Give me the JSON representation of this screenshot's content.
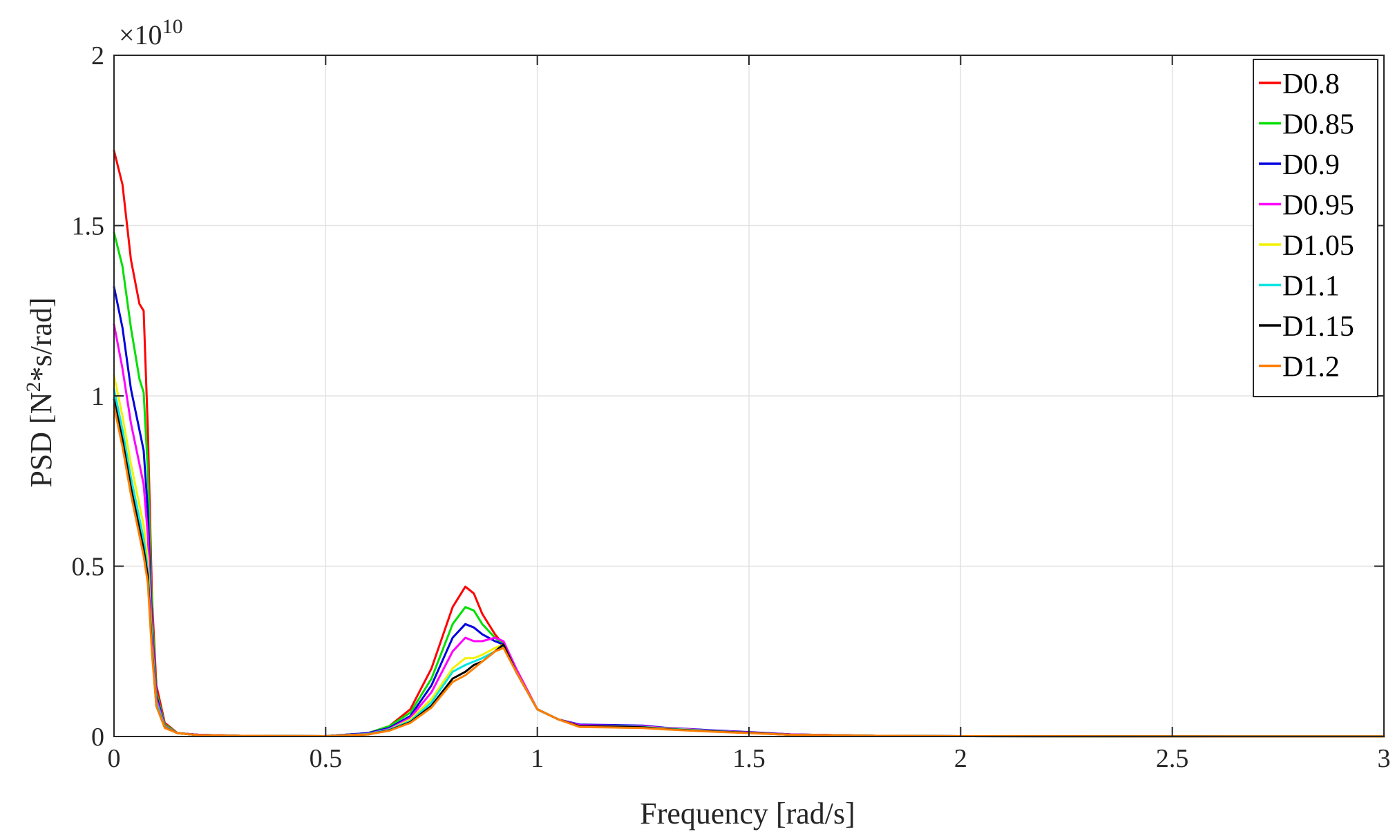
{
  "chart_data": {
    "type": "line",
    "xlabel": "Frequency [rad/s]",
    "ylabel_parts": {
      "prefix": "PSD [N",
      "superscript": "2",
      "suffix": "*s/rad]"
    },
    "y_exponent": {
      "base": "×10",
      "power": "10"
    },
    "xlim": [
      0,
      3
    ],
    "ylim": [
      0,
      2
    ],
    "x_ticks": [
      0,
      0.5,
      1,
      1.5,
      2,
      2.5,
      3
    ],
    "x_tick_labels": [
      "0",
      "0.5",
      "1",
      "1.5",
      "2",
      "2.5",
      "3"
    ],
    "y_ticks": [
      0,
      0.5,
      1,
      1.5,
      2
    ],
    "y_tick_labels": [
      "0",
      "0.5",
      "1",
      "1.5",
      "2"
    ],
    "grid": true,
    "legend_position": "top-right",
    "x": [
      0,
      0.02,
      0.04,
      0.06,
      0.07,
      0.08,
      0.09,
      0.1,
      0.12,
      0.15,
      0.2,
      0.3,
      0.5,
      0.6,
      0.65,
      0.7,
      0.75,
      0.8,
      0.83,
      0.85,
      0.87,
      0.9,
      0.92,
      0.95,
      1.0,
      1.05,
      1.1,
      1.2,
      1.25,
      1.3,
      1.4,
      1.5,
      1.6,
      1.8,
      2.0,
      2.5,
      3.0
    ],
    "series": [
      {
        "name": "D0.8",
        "color": "#ff0000",
        "values": [
          1.72,
          1.62,
          1.4,
          1.27,
          1.25,
          0.9,
          0.4,
          0.15,
          0.04,
          0.01,
          0.005,
          0.002,
          0.001,
          0.01,
          0.03,
          0.08,
          0.2,
          0.38,
          0.44,
          0.42,
          0.36,
          0.3,
          0.27,
          0.19,
          0.08,
          0.05,
          0.03,
          0.03,
          0.028,
          0.024,
          0.018,
          0.012,
          0.006,
          0.002,
          0.001,
          0.0005,
          0.0003
        ]
      },
      {
        "name": "D0.85",
        "color": "#00e000",
        "values": [
          1.48,
          1.38,
          1.2,
          1.05,
          1.01,
          0.78,
          0.36,
          0.13,
          0.035,
          0.01,
          0.005,
          0.002,
          0.001,
          0.01,
          0.03,
          0.07,
          0.17,
          0.33,
          0.38,
          0.37,
          0.33,
          0.29,
          0.27,
          0.19,
          0.08,
          0.05,
          0.03,
          0.032,
          0.03,
          0.025,
          0.018,
          0.012,
          0.006,
          0.002,
          0.001,
          0.0005,
          0.0003
        ]
      },
      {
        "name": "D0.9",
        "color": "#0000e0",
        "values": [
          1.32,
          1.2,
          1.02,
          0.9,
          0.84,
          0.66,
          0.32,
          0.12,
          0.03,
          0.01,
          0.005,
          0.002,
          0.001,
          0.01,
          0.025,
          0.06,
          0.15,
          0.29,
          0.33,
          0.32,
          0.3,
          0.28,
          0.27,
          0.19,
          0.08,
          0.05,
          0.035,
          0.033,
          0.032,
          0.026,
          0.019,
          0.013,
          0.006,
          0.002,
          0.001,
          0.0005,
          0.0003
        ]
      },
      {
        "name": "D0.95",
        "color": "#ff00ff",
        "values": [
          1.21,
          1.08,
          0.92,
          0.8,
          0.74,
          0.59,
          0.3,
          0.11,
          0.03,
          0.01,
          0.005,
          0.002,
          0.001,
          0.008,
          0.022,
          0.055,
          0.13,
          0.25,
          0.29,
          0.28,
          0.28,
          0.29,
          0.28,
          0.2,
          0.08,
          0.05,
          0.033,
          0.031,
          0.03,
          0.025,
          0.018,
          0.012,
          0.006,
          0.002,
          0.001,
          0.0005,
          0.0003
        ]
      },
      {
        "name": "D1.05",
        "color": "#f2f200",
        "values": [
          1.06,
          0.94,
          0.8,
          0.68,
          0.62,
          0.52,
          0.27,
          0.1,
          0.028,
          0.01,
          0.004,
          0.002,
          0.001,
          0.007,
          0.02,
          0.05,
          0.11,
          0.2,
          0.23,
          0.23,
          0.24,
          0.26,
          0.27,
          0.19,
          0.08,
          0.05,
          0.03,
          0.03,
          0.028,
          0.024,
          0.017,
          0.011,
          0.005,
          0.002,
          0.001,
          0.0005,
          0.0003
        ]
      },
      {
        "name": "D1.1",
        "color": "#00e5e5",
        "values": [
          1.02,
          0.9,
          0.76,
          0.64,
          0.58,
          0.49,
          0.26,
          0.1,
          0.027,
          0.01,
          0.004,
          0.002,
          0.001,
          0.007,
          0.02,
          0.045,
          0.1,
          0.19,
          0.21,
          0.22,
          0.23,
          0.25,
          0.27,
          0.19,
          0.08,
          0.05,
          0.03,
          0.03,
          0.028,
          0.023,
          0.017,
          0.011,
          0.005,
          0.002,
          0.001,
          0.0005,
          0.0003
        ]
      },
      {
        "name": "D1.15",
        "color": "#000000",
        "values": [
          0.99,
          0.87,
          0.73,
          0.61,
          0.55,
          0.47,
          0.25,
          0.09,
          0.026,
          0.01,
          0.004,
          0.002,
          0.001,
          0.006,
          0.018,
          0.042,
          0.09,
          0.17,
          0.19,
          0.21,
          0.22,
          0.25,
          0.27,
          0.19,
          0.08,
          0.05,
          0.03,
          0.029,
          0.027,
          0.022,
          0.016,
          0.011,
          0.005,
          0.002,
          0.001,
          0.0005,
          0.0003
        ]
      },
      {
        "name": "D1.2",
        "color": "#ff7f00",
        "values": [
          0.97,
          0.85,
          0.71,
          0.59,
          0.53,
          0.45,
          0.24,
          0.09,
          0.025,
          0.01,
          0.004,
          0.002,
          0.001,
          0.006,
          0.017,
          0.04,
          0.085,
          0.16,
          0.18,
          0.2,
          0.22,
          0.25,
          0.26,
          0.19,
          0.08,
          0.05,
          0.028,
          0.026,
          0.025,
          0.021,
          0.015,
          0.01,
          0.005,
          0.002,
          0.001,
          0.0005,
          0.0003
        ]
      }
    ]
  }
}
